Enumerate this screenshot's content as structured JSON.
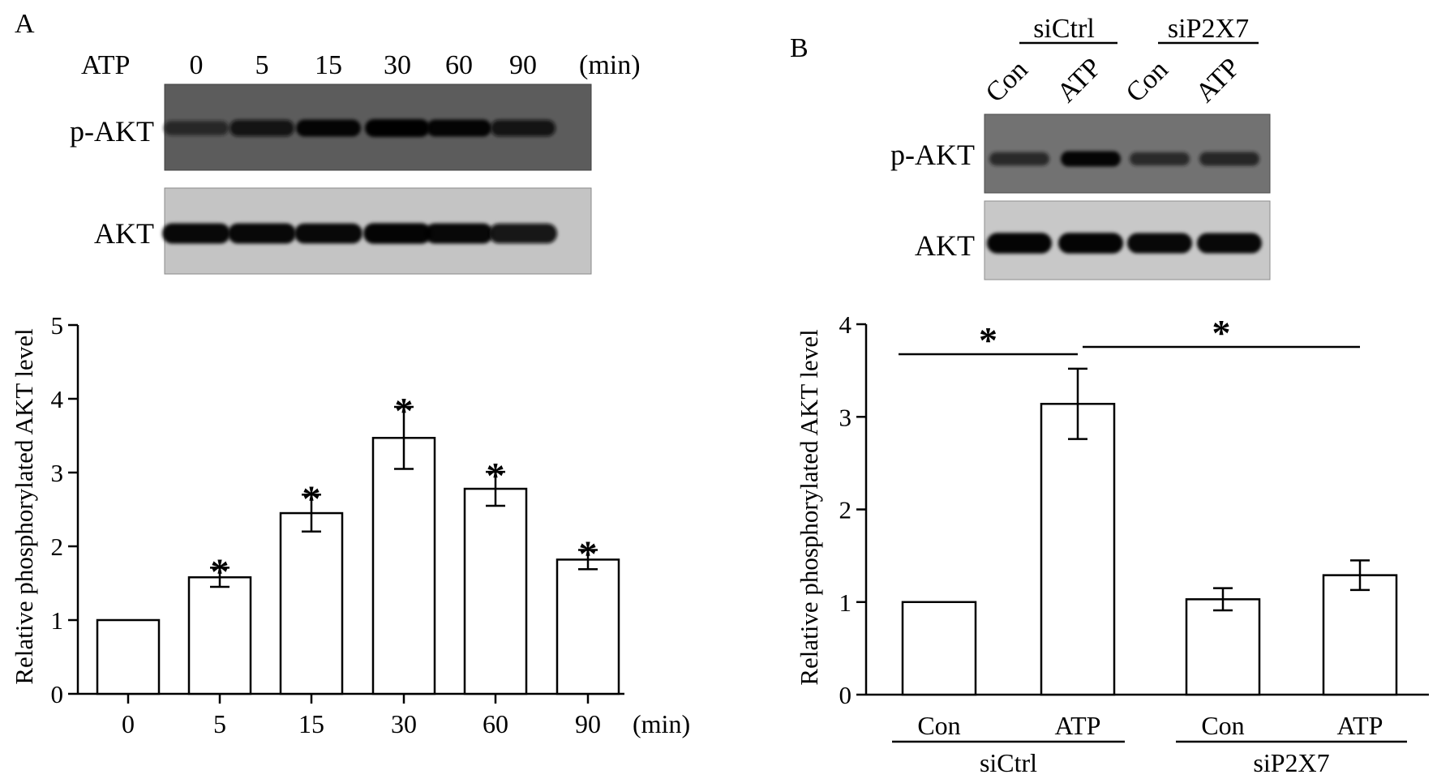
{
  "panels": {
    "a": {
      "letter": "A",
      "blot": {
        "treatment_label": "ATP",
        "lanes": [
          "0",
          "5",
          "15",
          "30",
          "60",
          "90"
        ],
        "unit_label": "(min)",
        "rows": [
          {
            "label": "p-AKT",
            "band_strength": [
              0.55,
              0.82,
              0.9,
              1.0,
              0.9,
              0.82
            ]
          },
          {
            "label": "AKT",
            "band_strength": [
              0.92,
              0.92,
              0.9,
              0.95,
              0.92,
              0.88
            ]
          }
        ]
      }
    },
    "b": {
      "letter": "B",
      "blot": {
        "groups": [
          {
            "label": "siCtrl",
            "lanes": [
              "Con",
              "ATP"
            ]
          },
          {
            "label": "siP2X7",
            "lanes": [
              "Con",
              "ATP"
            ]
          }
        ],
        "rows": [
          {
            "label": "p-AKT",
            "band_strength": [
              0.6,
              0.9,
              0.58,
              0.66
            ]
          },
          {
            "label": "AKT",
            "band_strength": [
              0.95,
              0.95,
              0.92,
              0.92
            ]
          }
        ]
      }
    }
  },
  "chart_data": [
    {
      "type": "bar",
      "categories": [
        "0",
        "5",
        "15",
        "30",
        "60",
        "90"
      ],
      "values": [
        1.0,
        1.58,
        2.45,
        3.47,
        2.78,
        1.82
      ],
      "errors": [
        0,
        0.13,
        0.25,
        0.42,
        0.23,
        0.13
      ],
      "significance": [
        "",
        "*",
        "*",
        "*",
        "*",
        "*"
      ],
      "x_unit": "(min)",
      "ylabel": "Relative phosphorylated AKT level",
      "ylim": [
        0,
        5
      ],
      "yticks": [
        0,
        1,
        2,
        3,
        4,
        5
      ],
      "bar_color": "#ffffff",
      "edge_color": "#000000"
    },
    {
      "type": "bar",
      "categories": [
        "Con",
        "ATP",
        "Con",
        "ATP"
      ],
      "groups": [
        {
          "label": "siCtrl",
          "members": [
            0,
            1
          ]
        },
        {
          "label": "siP2X7",
          "members": [
            2,
            3
          ]
        }
      ],
      "values": [
        1.0,
        3.14,
        1.03,
        1.29
      ],
      "errors": [
        0,
        0.38,
        0.12,
        0.16
      ],
      "comparisons": [
        {
          "from": 0,
          "to": 1,
          "label": "*"
        },
        {
          "from": 1,
          "to": 3,
          "label": "*"
        }
      ],
      "ylabel": "Relative phosphorylated AKT level",
      "ylim": [
        0,
        4
      ],
      "yticks": [
        0,
        1,
        2,
        3,
        4
      ],
      "bar_color": "#ffffff",
      "edge_color": "#000000"
    }
  ]
}
